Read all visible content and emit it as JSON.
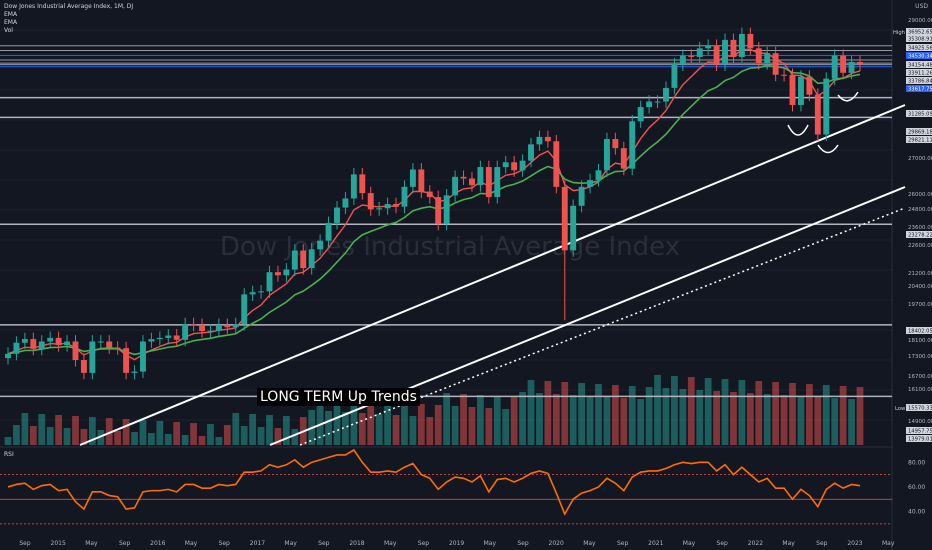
{
  "legend": {
    "title": "Dow Jones Industrial Average Index, 1M, DJ",
    "items": [
      "EMA",
      "EMA",
      "Vol"
    ]
  },
  "rsi_label": "RSI",
  "axis_title": "USD",
  "annotation": "LONG TERM Up Trends",
  "watermark": "Dow Jones Industrial Average Index",
  "colors": {
    "background": "#131722",
    "up": "#26a69a",
    "down": "#ef5350",
    "ema_fast": "#ef5350",
    "ema_slow": "#4caf50",
    "rsi": "#ff6d00",
    "hline": "#b2b5be",
    "blue": "#2962ff"
  },
  "chart_data": {
    "type": "candlestick",
    "price_axis": {
      "ticks": [
        "29000.00",
        "27000.00",
        "26000.00",
        "24800.00",
        "23600.00",
        "22600.00",
        "21200.00",
        "20400.00",
        "19700.00",
        "18100.00",
        "17300.00",
        "16700.00",
        "16100.00",
        "14900.00"
      ],
      "labels": [
        {
          "text": "36952.65",
          "kind": "high_value"
        },
        {
          "text": "35308.91",
          "kind": "level"
        },
        {
          "text": "34925.56",
          "kind": "level"
        },
        {
          "text": "34530.34",
          "kind": "blue"
        },
        {
          "text": "34154.48",
          "kind": "level"
        },
        {
          "text": "33911.26",
          "kind": "level"
        },
        {
          "text": "33786.84",
          "kind": "level"
        },
        {
          "text": "33617.75",
          "kind": "blue"
        },
        {
          "text": "31285.09",
          "kind": "level"
        },
        {
          "text": "29869.18",
          "kind": "level"
        },
        {
          "text": "29821.11",
          "kind": "level"
        },
        {
          "text": "23278.22",
          "kind": "level"
        },
        {
          "text": "18402.05",
          "kind": "level"
        },
        {
          "text": "15570.33",
          "kind": "low_value"
        },
        {
          "text": "14957.75",
          "kind": "level"
        },
        {
          "text": "13979.01",
          "kind": "level"
        }
      ],
      "high_label": "High",
      "low_label": "Low"
    },
    "time_axis": [
      "Sep",
      "2015",
      "May",
      "Sep",
      "2016",
      "May",
      "Sep",
      "2017",
      "May",
      "Sep",
      "2018",
      "May",
      "Sep",
      "2019",
      "May",
      "Sep",
      "2020",
      "May",
      "Sep",
      "2021",
      "May",
      "Sep",
      "2022",
      "May",
      "Sep",
      "2023",
      "May"
    ],
    "rsi_axis": [
      "80.00",
      "60.00",
      "40.00"
    ],
    "rsi_levels": [
      70,
      50,
      30
    ],
    "hlines": [
      29869.18,
      31285.09,
      23278.22,
      18402.05,
      15570.33
    ],
    "close": [
      17200,
      17650,
      17800,
      17400,
      17700,
      17850,
      17550,
      17700,
      16950,
      16450,
      17700,
      17700,
      17450,
      17425,
      16450,
      16500,
      17700,
      17800,
      17850,
      17950,
      17770,
      18430,
      18400,
      18140,
      18150,
      18400,
      18300,
      18430,
      19760,
      19860,
      19900,
      20810,
      20660,
      20940,
      21890,
      21010,
      21950,
      22400,
      23350,
      24200,
      24720,
      26150,
      25030,
      24100,
      24160,
      24400,
      24250,
      25400,
      26450,
      25120,
      24800,
      23300,
      24900,
      26000,
      25900,
      25500,
      26600,
      24800,
      26600,
      26900,
      26400,
      27000,
      28050,
      28540,
      28250,
      25400,
      21900,
      24300,
      25400,
      25800,
      26400,
      28400,
      27800,
      26500,
      29600,
      30600,
      31000,
      31000,
      32000,
      33800,
      34500,
      34400,
      35100,
      35300,
      33800,
      35800,
      34400,
      36300,
      35100,
      33900,
      34700,
      33000,
      32990,
      30750,
      32850,
      31500,
      28700,
      32700,
      34500,
      33150,
      34000,
      33800
    ],
    "rsi": [
      60,
      62,
      63,
      58,
      61,
      62,
      57,
      58,
      48,
      42,
      56,
      56,
      53,
      52,
      42,
      43,
      56,
      57,
      57,
      58,
      56,
      62,
      62,
      59,
      59,
      62,
      61,
      62,
      72,
      72,
      73,
      78,
      76,
      78,
      82,
      76,
      80,
      82,
      84,
      86,
      86,
      90,
      80,
      72,
      72,
      73,
      72,
      76,
      79,
      70,
      67,
      58,
      64,
      68,
      67,
      64,
      69,
      56,
      66,
      67,
      64,
      67,
      71,
      73,
      71,
      55,
      38,
      50,
      55,
      57,
      60,
      67,
      63,
      57,
      68,
      72,
      73,
      73,
      75,
      78,
      80,
      79,
      80,
      80,
      73,
      78,
      70,
      76,
      70,
      64,
      67,
      59,
      59,
      50,
      58,
      53,
      44,
      58,
      63,
      59,
      62,
      61
    ]
  }
}
